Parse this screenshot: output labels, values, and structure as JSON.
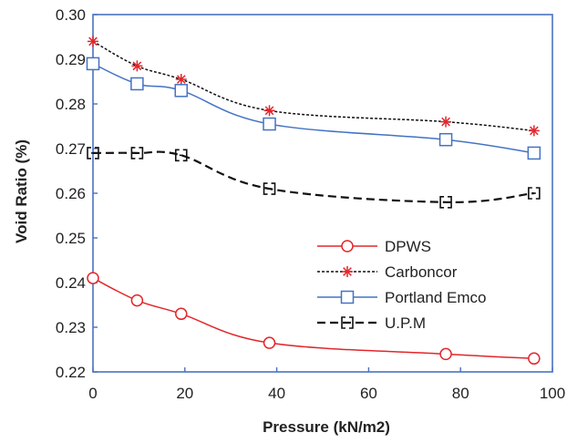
{
  "chart_data": {
    "type": "line",
    "title": "",
    "xlabel": "Pressure (kN/m2)",
    "ylabel": "Void Ratio (%)",
    "xlim": [
      0,
      100
    ],
    "ylim": [
      0.22,
      0.3
    ],
    "xticks": [
      "0",
      "20",
      "40",
      "60",
      "80",
      "100"
    ],
    "yticks": [
      "0.22",
      "0.23",
      "0.24",
      "0.25",
      "0.26",
      "0.27",
      "0.28",
      "0.29",
      "0.30"
    ],
    "grid": false,
    "legend_position": "center-right",
    "series": [
      {
        "name": "DPWS",
        "color": "#e3262b",
        "marker": "circle",
        "line": "solid",
        "x": [
          0,
          9.6,
          19.2,
          38.4,
          76.8,
          96
        ],
        "y": [
          0.241,
          0.236,
          0.233,
          0.2265,
          0.224,
          0.223
        ]
      },
      {
        "name": "Carboncor",
        "color": "#111111",
        "markerColor": "#e3262b",
        "marker": "asterisk",
        "line": "dotted",
        "x": [
          0,
          9.6,
          19.2,
          38.4,
          76.8,
          96
        ],
        "y": [
          0.294,
          0.2885,
          0.2855,
          0.2785,
          0.276,
          0.274
        ]
      },
      {
        "name": "Portland Emco",
        "color": "#4472c4",
        "marker": "square",
        "line": "solid",
        "x": [
          0,
          9.6,
          19.2,
          38.4,
          76.8,
          96
        ],
        "y": [
          0.289,
          0.2845,
          0.283,
          0.2755,
          0.272,
          0.269
        ]
      },
      {
        "name": "U.P.M",
        "color": "#111111",
        "marker": "bracket",
        "line": "dashed",
        "x": [
          0,
          9.6,
          19.2,
          38.4,
          76.8,
          96
        ],
        "y": [
          0.269,
          0.269,
          0.2685,
          0.261,
          0.258,
          0.26
        ]
      }
    ]
  }
}
